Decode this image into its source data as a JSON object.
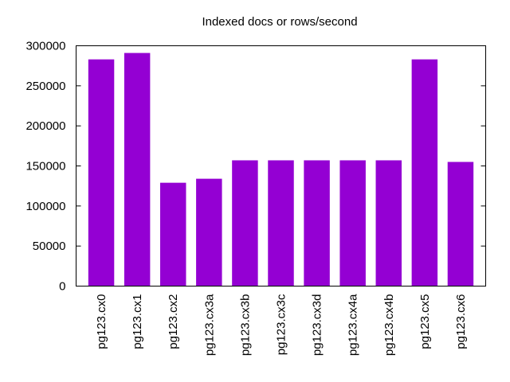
{
  "chart_data": {
    "type": "bar",
    "title": "Indexed docs or rows/second",
    "xlabel": "",
    "ylabel": "",
    "categories": [
      "pg123.cx0",
      "pg123.cx1",
      "pg123.cx2",
      "pg123.cx3a",
      "pg123.cx3b",
      "pg123.cx3c",
      "pg123.cx3d",
      "pg123.cx4a",
      "pg123.cx4b",
      "pg123.cx5",
      "pg123.cx6"
    ],
    "values": [
      283000,
      291000,
      129000,
      134000,
      157000,
      157000,
      157000,
      157000,
      157000,
      283000,
      155000
    ],
    "ylim": [
      0,
      300000
    ],
    "yticks": [
      "0",
      "50000",
      "100000",
      "150000",
      "200000",
      "250000",
      "300000"
    ],
    "bar_color": "#9400d3",
    "grid": false,
    "legend": "none"
  }
}
